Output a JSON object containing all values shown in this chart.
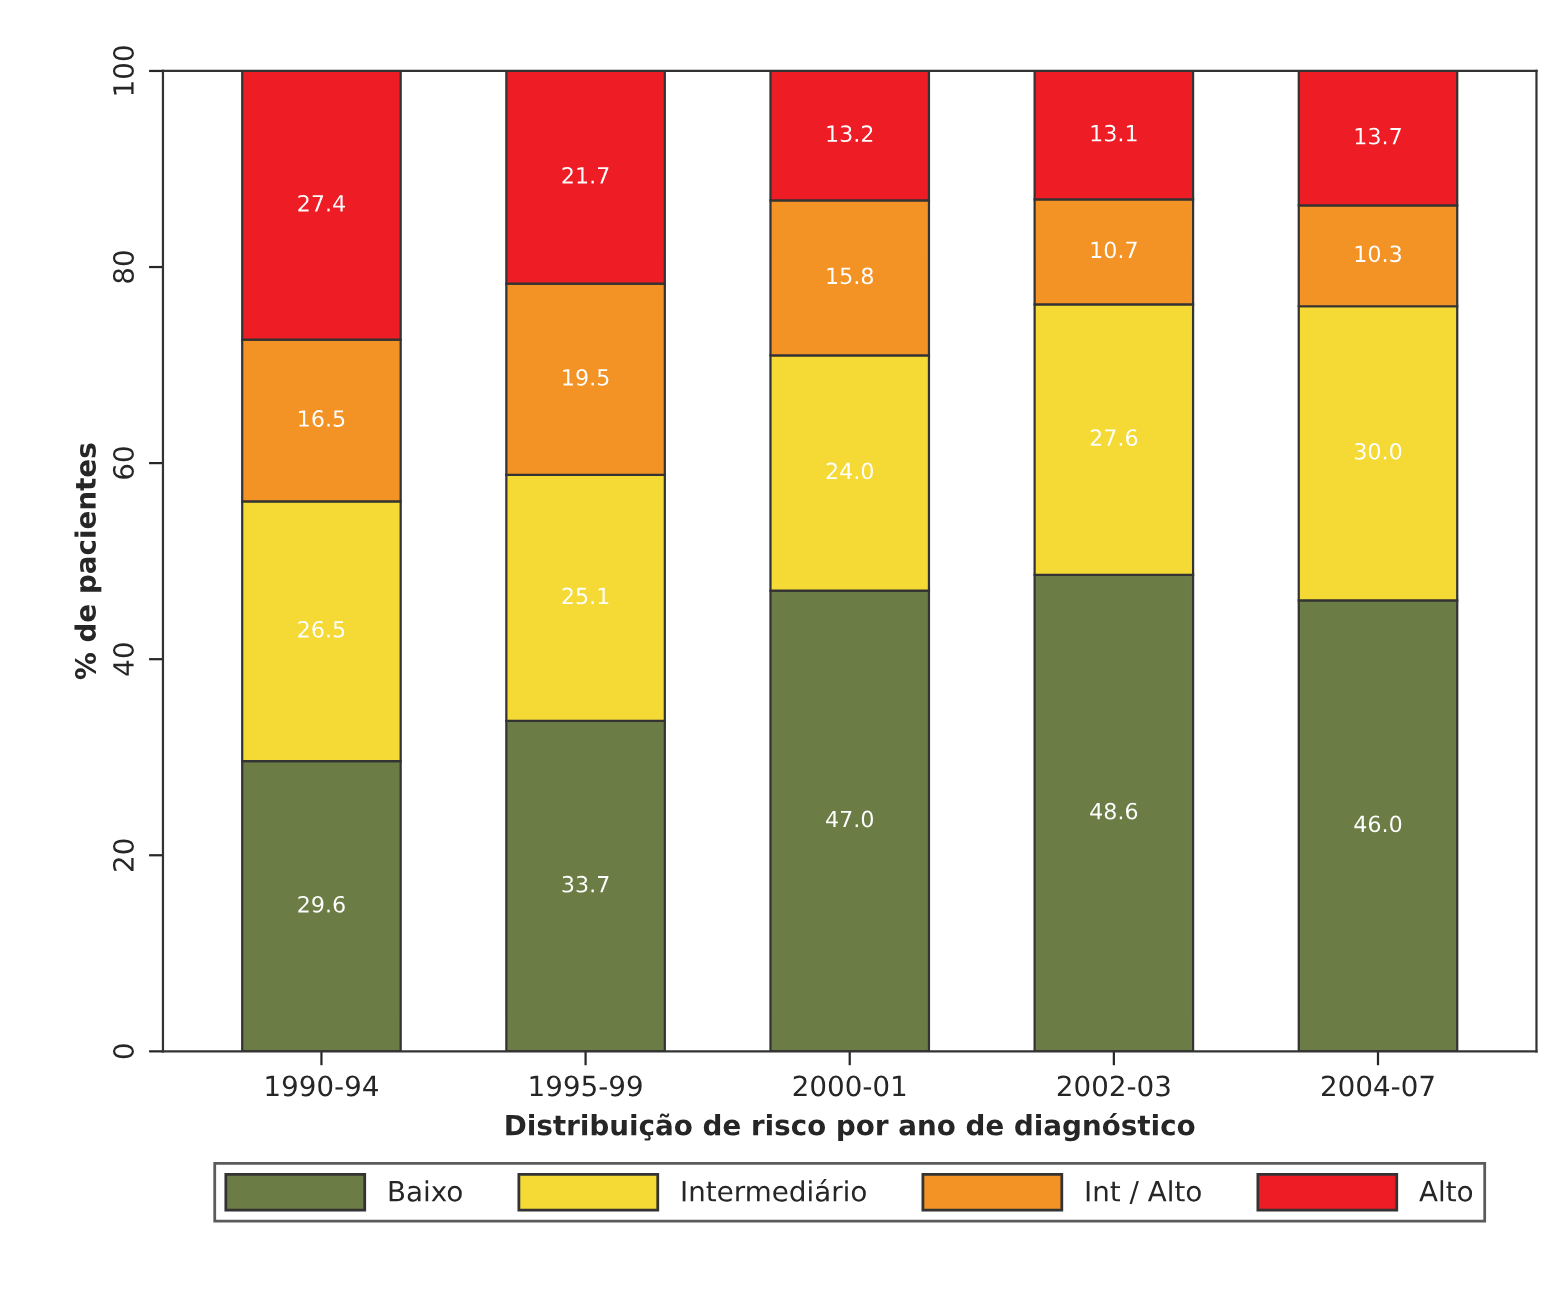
{
  "chart_data": {
    "type": "bar",
    "stacked": true,
    "xlabel": "Distribuição de risco por ano de diagnóstico",
    "ylabel": "% de pacientes",
    "categories": [
      "1990-94",
      "1995-99",
      "2000-01",
      "2002-03",
      "2004-07"
    ],
    "series": [
      {
        "name": "Baixo",
        "color": "#6b7d45",
        "values": [
          29.6,
          33.7,
          47.0,
          48.6,
          46.0
        ],
        "value_labels": [
          "29.6",
          "33.7",
          "47.0",
          "48.6",
          "46.0"
        ]
      },
      {
        "name": "Intermediário",
        "color": "#f5d935",
        "values": [
          26.5,
          25.1,
          24.0,
          27.6,
          30.0
        ],
        "value_labels": [
          "26.5",
          "25.1",
          "24.0",
          "27.6",
          "30.0"
        ]
      },
      {
        "name": "Int / Alto",
        "color": "#f39325",
        "values": [
          16.5,
          19.5,
          15.8,
          10.7,
          10.3
        ],
        "value_labels": [
          "16.5",
          "19.5",
          "15.8",
          "10.7",
          "10.3"
        ]
      },
      {
        "name": "Alto",
        "color": "#ee1c25",
        "values": [
          27.4,
          21.7,
          13.2,
          13.1,
          13.7
        ],
        "value_labels": [
          "27.4",
          "21.7",
          "13.2",
          "13.1",
          "13.7"
        ]
      }
    ],
    "ylim": [
      0,
      100
    ],
    "yticks": [
      0,
      20,
      40,
      60,
      80,
      100
    ],
    "grid": false,
    "legend": "bottom"
  }
}
